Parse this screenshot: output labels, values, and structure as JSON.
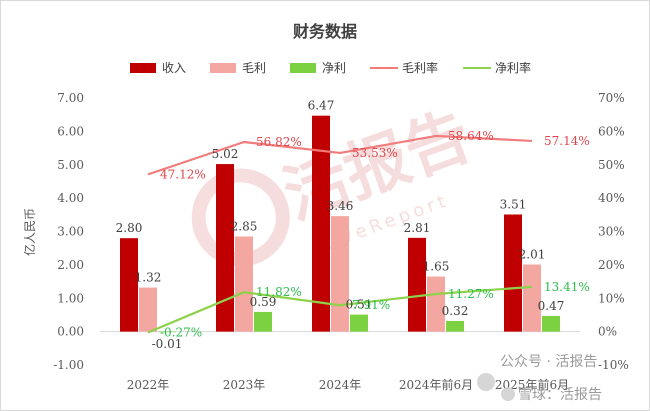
{
  "chart_data": {
    "type": "bar",
    "title": "财务数据",
    "ylabel": "亿人民币",
    "ylim": [
      -1.0,
      7.0
    ],
    "y2lim": [
      -0.1,
      0.7
    ],
    "yticks": [
      "-1.00",
      "0.00",
      "1.00",
      "2.00",
      "3.00",
      "4.00",
      "5.00",
      "6.00",
      "7.00"
    ],
    "y2ticks": [
      "-10%",
      "0%",
      "10%",
      "20%",
      "30%",
      "40%",
      "50%",
      "60%",
      "70%"
    ],
    "categories": [
      "2022年",
      "2023年",
      "2024年",
      "2024年前6月",
      "2025年前6月"
    ],
    "series": [
      {
        "name": "收入",
        "kind": "bar",
        "color": "#c00000",
        "values": [
          2.8,
          5.02,
          6.47,
          2.81,
          3.51
        ],
        "labels": [
          "2.80",
          "5.02",
          "6.47",
          "2.81",
          "3.51"
        ]
      },
      {
        "name": "毛利",
        "kind": "bar",
        "color": "#f4a6a0",
        "values": [
          1.32,
          2.85,
          3.46,
          1.65,
          2.01
        ],
        "labels": [
          "1.32",
          "2.85",
          "3.46",
          "1.65",
          "2.01"
        ]
      },
      {
        "name": "净利",
        "kind": "bar",
        "color": "#7cd140",
        "values": [
          -0.01,
          0.59,
          0.51,
          0.32,
          0.47
        ],
        "labels": [
          "-0.01",
          "0.59",
          "0.51",
          "0.32",
          "0.47"
        ]
      },
      {
        "name": "毛利率",
        "kind": "line",
        "axis": "right",
        "color": "#f07c7c",
        "values": [
          0.4712,
          0.5682,
          0.5353,
          0.5864,
          0.5714
        ],
        "labels": [
          "47.12%",
          "56.82%",
          "53.53%",
          "58.64%",
          "57.14%"
        ]
      },
      {
        "name": "净利率",
        "kind": "line",
        "axis": "right",
        "color": "#8ed14a",
        "values": [
          -0.0027,
          0.1182,
          0.0791,
          0.1127,
          0.1341
        ],
        "labels": [
          "-0.27%",
          "11.82%",
          "7.91%",
          "11.27%",
          "13.41%"
        ]
      }
    ],
    "legend_position": "top",
    "grid": false
  },
  "watermark": {
    "center_logo_text": "活报告",
    "center_logo_sub": "LiveReport",
    "footer_text_1": "公众号 · 活报告",
    "footer_text_2": "雪球：活报告"
  }
}
